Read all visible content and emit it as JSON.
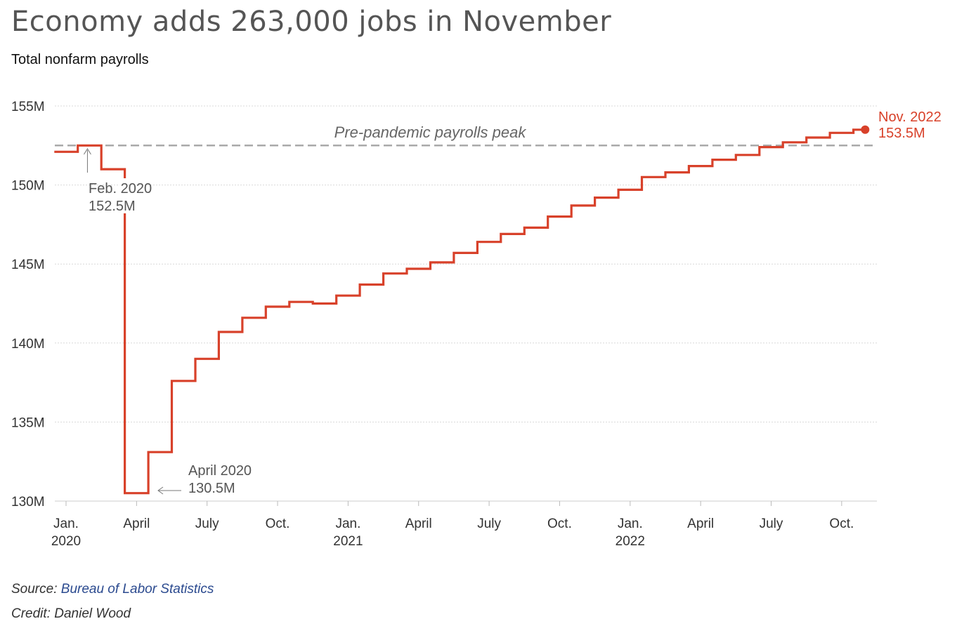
{
  "title": "Economy adds 263,000 jobs in November",
  "subtitle": "Total nonfarm payrolls",
  "source_prefix": "Source: ",
  "source_name": "Bureau of Labor Statistics",
  "credit": "Credit: Daniel Wood",
  "colors": {
    "line": "#d8412a",
    "grid": "#d9d9d9",
    "peak": "#aaaaaa",
    "text": "#333333"
  },
  "chart_data": {
    "type": "line",
    "step": true,
    "title": "Economy adds 263,000 jobs in November",
    "subtitle": "Total nonfarm payrolls",
    "xlabel": "",
    "ylabel": "",
    "ylim": [
      130,
      155
    ],
    "y_unit": "M",
    "grid": true,
    "y_ticks": [
      {
        "value": 155,
        "label": "155M"
      },
      {
        "value": 150,
        "label": "150M"
      },
      {
        "value": 145,
        "label": "145M"
      },
      {
        "value": 140,
        "label": "140M"
      },
      {
        "value": 135,
        "label": "135M"
      },
      {
        "value": 130,
        "label": "130M"
      }
    ],
    "x_ticks": [
      {
        "date": "2020-01",
        "label": "Jan.",
        "year": "2020"
      },
      {
        "date": "2020-04",
        "label": "April",
        "year": ""
      },
      {
        "date": "2020-07",
        "label": "July",
        "year": ""
      },
      {
        "date": "2020-10",
        "label": "Oct.",
        "year": ""
      },
      {
        "date": "2021-01",
        "label": "Jan.",
        "year": "2021"
      },
      {
        "date": "2021-04",
        "label": "April",
        "year": ""
      },
      {
        "date": "2021-07",
        "label": "July",
        "year": ""
      },
      {
        "date": "2021-10",
        "label": "Oct.",
        "year": ""
      },
      {
        "date": "2022-01",
        "label": "Jan.",
        "year": "2022"
      },
      {
        "date": "2022-04",
        "label": "April",
        "year": ""
      },
      {
        "date": "2022-07",
        "label": "July",
        "year": ""
      },
      {
        "date": "2022-10",
        "label": "Oct.",
        "year": ""
      }
    ],
    "series": [
      {
        "values": [
          {
            "x": "2020-01",
            "y": 152.1
          },
          {
            "x": "2020-02",
            "y": 152.5
          },
          {
            "x": "2020-03",
            "y": 151.0
          },
          {
            "x": "2020-04",
            "y": 130.5
          },
          {
            "x": "2020-05",
            "y": 133.1
          },
          {
            "x": "2020-06",
            "y": 137.6
          },
          {
            "x": "2020-07",
            "y": 139.0
          },
          {
            "x": "2020-08",
            "y": 140.7
          },
          {
            "x": "2020-09",
            "y": 141.6
          },
          {
            "x": "2020-10",
            "y": 142.3
          },
          {
            "x": "2020-11",
            "y": 142.6
          },
          {
            "x": "2020-12",
            "y": 142.5
          },
          {
            "x": "2021-01",
            "y": 143.0
          },
          {
            "x": "2021-02",
            "y": 143.7
          },
          {
            "x": "2021-03",
            "y": 144.4
          },
          {
            "x": "2021-04",
            "y": 144.7
          },
          {
            "x": "2021-05",
            "y": 145.1
          },
          {
            "x": "2021-06",
            "y": 145.7
          },
          {
            "x": "2021-07",
            "y": 146.4
          },
          {
            "x": "2021-08",
            "y": 146.9
          },
          {
            "x": "2021-09",
            "y": 147.3
          },
          {
            "x": "2021-10",
            "y": 148.0
          },
          {
            "x": "2021-11",
            "y": 148.7
          },
          {
            "x": "2021-12",
            "y": 149.2
          },
          {
            "x": "2022-01",
            "y": 149.7
          },
          {
            "x": "2022-02",
            "y": 150.5
          },
          {
            "x": "2022-03",
            "y": 150.8
          },
          {
            "x": "2022-04",
            "y": 151.2
          },
          {
            "x": "2022-05",
            "y": 151.6
          },
          {
            "x": "2022-06",
            "y": 151.9
          },
          {
            "x": "2022-07",
            "y": 152.4
          },
          {
            "x": "2022-08",
            "y": 152.7
          },
          {
            "x": "2022-09",
            "y": 153.0
          },
          {
            "x": "2022-10",
            "y": 153.3
          },
          {
            "x": "2022-11",
            "y": 153.5
          }
        ]
      }
    ],
    "reference_line": {
      "y": 152.5,
      "label": "Pre-pandemic payrolls peak"
    },
    "annotations": [
      {
        "x": "2020-02",
        "y": 152.5,
        "label": "Feb. 2020",
        "value_label": "152.5M"
      },
      {
        "x": "2020-04",
        "y": 130.5,
        "label": "April 2020",
        "value_label": "130.5M"
      },
      {
        "x": "2022-11",
        "y": 153.5,
        "label": "Nov. 2022",
        "value_label": "153.5M"
      }
    ]
  }
}
